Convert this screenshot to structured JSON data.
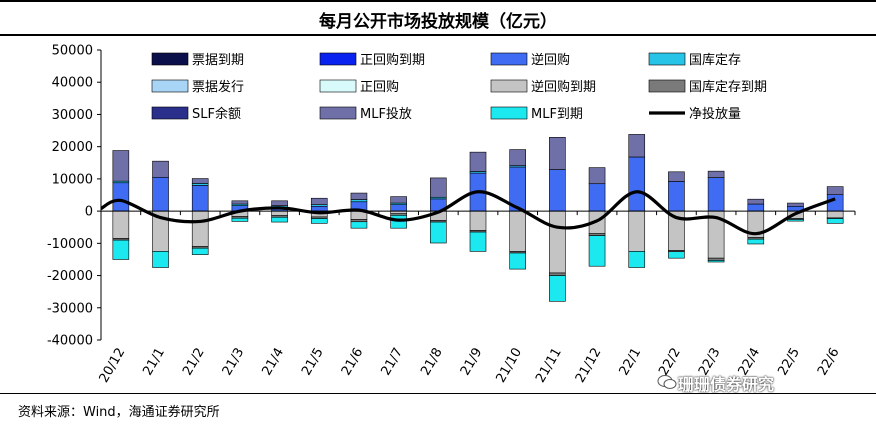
{
  "title": "每月公开市场投放规模（亿元）",
  "source": "资料来源：Wind，海通证券研究所",
  "watermark": "珊珊债券研究",
  "chart_data": {
    "type": "bar",
    "stacked": true,
    "title": "每月公开市场投放规模（亿元）",
    "xlabel": "",
    "ylabel": "",
    "ylim": [
      -40000,
      50000
    ],
    "yticks": [
      50000,
      40000,
      30000,
      20000,
      10000,
      0,
      -10000,
      -20000,
      -30000,
      -40000
    ],
    "categories": [
      "20/12",
      "21/1",
      "21/2",
      "21/3",
      "21/4",
      "21/5",
      "21/6",
      "21/7",
      "21/8",
      "21/9",
      "21/10",
      "21/11",
      "21/12",
      "22/1",
      "22/2",
      "22/3",
      "22/4",
      "22/5",
      "22/6"
    ],
    "series": [
      {
        "name": "票据到期",
        "color": "#0b0f4a",
        "values": [
          0,
          0,
          0,
          0,
          0,
          0,
          0,
          0,
          0,
          0,
          0,
          0,
          0,
          0,
          0,
          0,
          0,
          0,
          0
        ]
      },
      {
        "name": "正回购到期",
        "color": "#0a22f0",
        "values": [
          0,
          0,
          0,
          0,
          0,
          0,
          0,
          0,
          0,
          0,
          0,
          0,
          0,
          0,
          0,
          0,
          0,
          0,
          0
        ]
      },
      {
        "name": "逆回购",
        "color": "#3f6cf2",
        "values": [
          8800,
          10500,
          8000,
          1700,
          1200,
          1500,
          2900,
          2000,
          3800,
          11800,
          13700,
          12900,
          8500,
          16800,
          9200,
          10400,
          2200,
          1500,
          5100
        ]
      },
      {
        "name": "国库定存",
        "color": "#27c4e8",
        "values": [
          500,
          0,
          600,
          500,
          500,
          500,
          700,
          500,
          500,
          500,
          400,
          0,
          0,
          0,
          0,
          0,
          0,
          0,
          0
        ]
      },
      {
        "name": "票据发行",
        "color": "#a8d4f5",
        "values": [
          0,
          0,
          0,
          0,
          0,
          0,
          0,
          0,
          0,
          0,
          0,
          0,
          0,
          0,
          0,
          0,
          0,
          0,
          0
        ]
      },
      {
        "name": "正回购",
        "color": "#d8fafa",
        "values": [
          0,
          0,
          0,
          0,
          0,
          0,
          0,
          0,
          0,
          0,
          0,
          0,
          0,
          0,
          0,
          0,
          0,
          0,
          0
        ]
      },
      {
        "name": "逆回购到期",
        "color": "#c4c4c4",
        "values": [
          -8500,
          -12500,
          -11000,
          -1700,
          -1400,
          -1800,
          -2600,
          -800,
          -2900,
          -6000,
          -12500,
          -19200,
          -7000,
          -12500,
          -12200,
          -14600,
          -8200,
          -2300,
          -2100
        ]
      },
      {
        "name": "国库定存到期",
        "color": "#7a7a7a",
        "values": [
          -500,
          0,
          -500,
          -500,
          -500,
          -500,
          -700,
          -500,
          -500,
          -500,
          -500,
          -800,
          -600,
          0,
          -400,
          -700,
          -500,
          -300,
          -200
        ]
      },
      {
        "name": "SLF余额",
        "color": "#2a2f8c",
        "values": [
          0,
          0,
          0,
          0,
          0,
          0,
          0,
          0,
          0,
          0,
          0,
          0,
          0,
          0,
          0,
          0,
          0,
          0,
          0
        ]
      },
      {
        "name": "MLF投放",
        "color": "#7070a8",
        "values": [
          9500,
          5000,
          1500,
          1000,
          1500,
          2000,
          2000,
          2000,
          6000,
          6000,
          5000,
          10000,
          5000,
          7000,
          3000,
          2000,
          1500,
          1000,
          2500
        ]
      },
      {
        "name": "MLF到期",
        "color": "#1ce8f0",
        "values": [
          -6000,
          -5000,
          -2000,
          -1000,
          -1500,
          -1500,
          -2000,
          -4000,
          -6500,
          -6000,
          -5000,
          -8000,
          -9500,
          -5000,
          -2000,
          -500,
          -1500,
          -500,
          -1500
        ]
      }
    ],
    "line": {
      "name": "净投放量",
      "color": "#000000",
      "values": [
        3300,
        -2000,
        -3200,
        0,
        1000,
        -500,
        300,
        -2800,
        -300,
        6000,
        1000,
        -5000,
        -3000,
        6000,
        -2000,
        -2000,
        -7000,
        -800,
        3800
      ]
    },
    "legend": "top, 4 columns x 3 rows"
  }
}
